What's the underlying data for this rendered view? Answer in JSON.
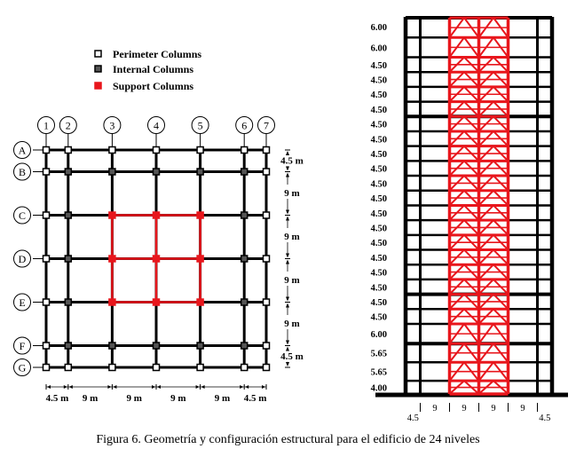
{
  "caption": "Figura 6. Geometría y configuración estructural para el edificio de 24 niveles",
  "legend": [
    {
      "label": "Perimeter Columns",
      "fill": "#ffffff",
      "stroke": "#000000"
    },
    {
      "label": "Internal Columns",
      "fill": "#555555",
      "stroke": "#000000"
    },
    {
      "label": "Support Columns",
      "fill": "#e8161c",
      "stroke": "#e8161c"
    }
  ],
  "colors": {
    "frame": "#000000",
    "support": "#e8161c"
  },
  "plan": {
    "column_labels": [
      "1",
      "2",
      "3",
      "4",
      "5",
      "6",
      "7"
    ],
    "row_labels": [
      "A",
      "B",
      "C",
      "D",
      "E",
      "F",
      "G"
    ],
    "x_spacing_labels": [
      "4.5 m",
      "9 m",
      "9 m",
      "9 m",
      "9 m",
      "4.5 m"
    ],
    "y_spacing_labels": [
      "4.5 m",
      "9 m",
      "9 m",
      "9 m",
      "9 m",
      "4.5 m"
    ],
    "x_spacing_m": [
      4.5,
      9,
      9,
      9,
      9,
      4.5
    ],
    "y_spacing_m": [
      4.5,
      9,
      9,
      9,
      9,
      4.5
    ]
  },
  "elevation": {
    "story_labels_top_down": [
      "6.00",
      "6.00",
      "4.50",
      "4.50",
      "4.50",
      "4.50",
      "4.50",
      "4.50",
      "4.50",
      "4.50",
      "4.50",
      "4.50",
      "4.50",
      "4.50",
      "4.50",
      "4.50",
      "4.50",
      "4.50",
      "4.50",
      "4.50",
      "6.00",
      "5.65",
      "5.65",
      "4.00"
    ],
    "bay_labels": [
      "4.5",
      "9",
      "9",
      "9",
      "9",
      "4.5"
    ],
    "bay_widths_m": [
      4.5,
      9,
      9,
      9,
      9,
      4.5
    ]
  }
}
